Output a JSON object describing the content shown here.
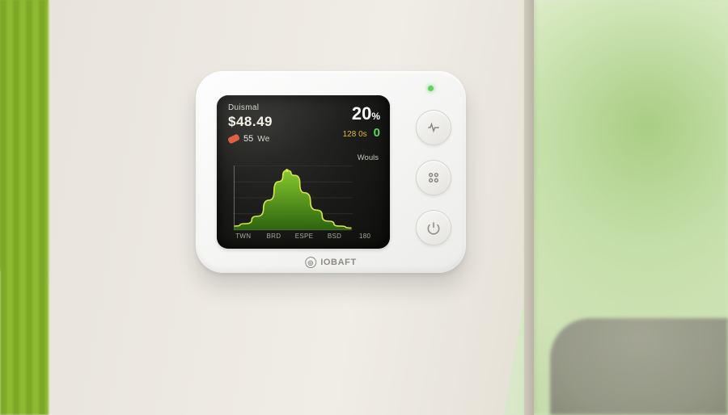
{
  "device": {
    "brand": "IOBAFT",
    "status_led_color": "#5fd45a",
    "buttons": {
      "mode_name": "mode-button",
      "settings_name": "settings-button",
      "power_name": "power-button"
    }
  },
  "screen": {
    "header": {
      "period_label": "Duismal",
      "cost": "$48.49",
      "percent": "20",
      "percent_unit": "%",
      "usage_sub": "128 0s",
      "tag_value": "55",
      "tag_unit": "We",
      "tag_color": "#e05a3c",
      "live_value": "0",
      "live_color": "#5fd45a",
      "usage_sub_color": "#d9b93a"
    },
    "chart": {
      "type": "area",
      "y_label": "Wouls",
      "x_labels": [
        "TWN",
        "BRD",
        "ESPE",
        "BSD",
        "180"
      ],
      "points": [
        {
          "x": 0.0,
          "y": 0.06
        },
        {
          "x": 0.1,
          "y": 0.1
        },
        {
          "x": 0.2,
          "y": 0.22
        },
        {
          "x": 0.3,
          "y": 0.48
        },
        {
          "x": 0.38,
          "y": 0.78
        },
        {
          "x": 0.45,
          "y": 0.96
        },
        {
          "x": 0.52,
          "y": 0.88
        },
        {
          "x": 0.6,
          "y": 0.6
        },
        {
          "x": 0.7,
          "y": 0.32
        },
        {
          "x": 0.8,
          "y": 0.14
        },
        {
          "x": 0.9,
          "y": 0.06
        },
        {
          "x": 1.0,
          "y": 0.03
        }
      ],
      "fill_top": "#8ed62e",
      "fill_bottom": "#2f6b0f",
      "stroke": "#d8e64a",
      "grid_color": "#3a3a36",
      "axis_color": "#6a685e",
      "dot_color": "#d8e64a",
      "ytick_count": 4
    },
    "background": "#181816",
    "text_primary": "#f5f2e6",
    "text_secondary": "#c9c6b7"
  }
}
